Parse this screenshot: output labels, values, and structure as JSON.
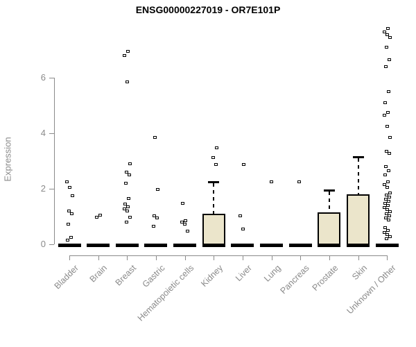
{
  "title": "ENSG00000227019 - OR7E101P",
  "chart_data": {
    "type": "boxplot",
    "title": "ENSG00000227019 - OR7E101P",
    "xlabel": "",
    "ylabel": "Expression",
    "yticks": [
      0,
      2,
      4,
      6
    ],
    "ylim": [
      0,
      7.9
    ],
    "grid": false,
    "legend": "none",
    "categories": [
      "Bladder",
      "Brain",
      "Breast",
      "Gastric",
      "Hematopoietic cells",
      "Kidney",
      "Liver",
      "Lung",
      "Pancreas",
      "Prostate",
      "Skin",
      "Unknown / Other"
    ],
    "series": [
      {
        "category": "Bladder",
        "q1": 0,
        "median": 0,
        "q3": 0,
        "whisker_high": 0,
        "outliers": [
          2.25,
          2.05,
          1.75,
          1.2,
          1.1,
          0.73,
          0.25,
          0.15
        ]
      },
      {
        "category": "Brain",
        "q1": 0,
        "median": 0,
        "q3": 0,
        "whisker_high": 0,
        "outliers": [
          1.05,
          0.97
        ]
      },
      {
        "category": "Breast",
        "q1": 0,
        "median": 0,
        "q3": 0,
        "whisker_high": 0,
        "outliers": [
          6.95,
          6.8,
          5.85,
          2.9,
          2.6,
          2.5,
          2.2,
          1.65,
          1.45,
          1.35,
          1.28,
          1.2,
          0.97,
          0.8
        ]
      },
      {
        "category": "Gastric",
        "q1": 0,
        "median": 0,
        "q3": 0,
        "whisker_high": 0,
        "outliers": [
          3.85,
          1.97,
          1.02,
          0.95,
          0.65
        ]
      },
      {
        "category": "Hematopoietic cells",
        "q1": 0,
        "median": 0,
        "q3": 0,
        "whisker_high": 0,
        "outliers": [
          1.47,
          0.85,
          0.8,
          0.72,
          0.47
        ]
      },
      {
        "category": "Kidney",
        "q1": 0,
        "median": 0,
        "q3": 1.1,
        "whisker_high": 2.25,
        "outliers": [
          3.47,
          3.13,
          2.87
        ]
      },
      {
        "category": "Liver",
        "q1": 0,
        "median": 0,
        "q3": 0,
        "whisker_high": 0,
        "outliers": [
          2.88,
          1.03,
          0.55
        ]
      },
      {
        "category": "Lung",
        "q1": 0,
        "median": 0,
        "q3": 0,
        "whisker_high": 0,
        "outliers": [
          2.25
        ]
      },
      {
        "category": "Pancreas",
        "q1": 0,
        "median": 0,
        "q3": 0,
        "whisker_high": 0,
        "outliers": [
          2.25
        ]
      },
      {
        "category": "Prostate",
        "q1": 0,
        "median": 0,
        "q3": 1.15,
        "whisker_high": 1.95,
        "outliers": []
      },
      {
        "category": "Skin",
        "q1": 0,
        "median": 0,
        "q3": 1.8,
        "whisker_high": 3.15,
        "outliers": []
      },
      {
        "category": "Unknown / Other",
        "q1": 0,
        "median": 0,
        "q3": 0,
        "whisker_high": 0,
        "outliers": [
          7.78,
          7.65,
          7.55,
          7.45,
          7.1,
          6.65,
          6.4,
          5.5,
          5.1,
          4.75,
          4.65,
          4.25,
          3.85,
          3.35,
          3.28,
          2.8,
          2.65,
          2.5,
          2.25,
          2.15,
          2.05,
          1.85,
          1.78,
          1.7,
          1.62,
          1.55,
          1.48,
          1.4,
          1.32,
          1.25,
          1.18,
          1.1,
          1.02,
          0.95,
          0.88,
          0.6,
          0.5,
          0.42,
          0.35,
          0.28,
          0.2
        ]
      }
    ],
    "colors": {
      "box_fill": "#EBE5CB",
      "box_border": "#000000",
      "median": "#000000",
      "axis": "#8A8A8A",
      "title": "#000000",
      "background": "#FFFFFF"
    }
  }
}
